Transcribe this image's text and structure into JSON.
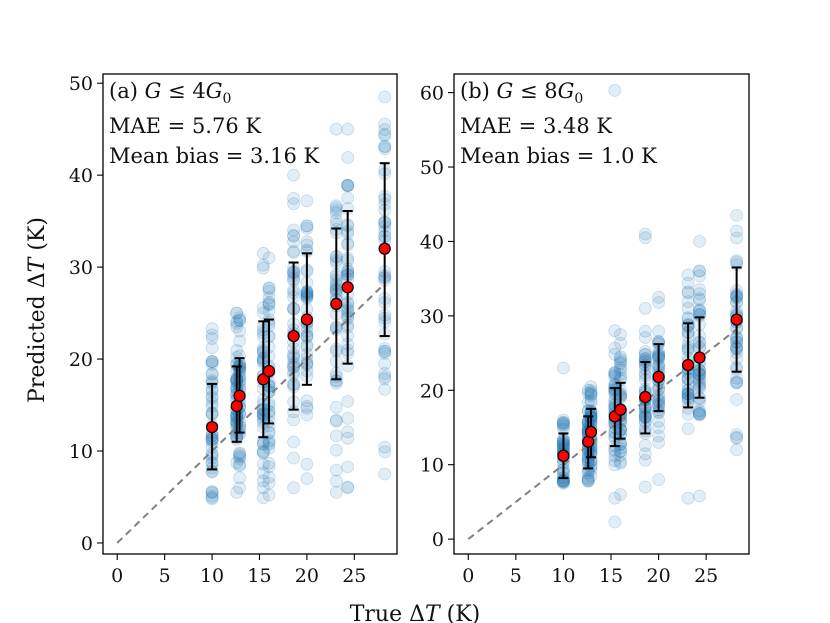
{
  "chart_data": {
    "type": "scatter",
    "xlabel": "True ΔT (K)",
    "ylabel": "Predicted ΔT (K)",
    "colors": {
      "scatter": "#1f77b4",
      "mean_marker": "#ff0000",
      "error_bar": "#000000",
      "diagonal": "#808080"
    },
    "scatter_alpha": 0.13,
    "panels": [
      {
        "id": "a",
        "label": "(a) ",
        "condition_var": "G",
        "condition_op": " ≤ 4",
        "condition_unit_base": "G",
        "condition_unit_sub": "0",
        "mae_text": "MAE = 5.76 K",
        "bias_text": "Mean bias = 3.16 K",
        "xlim": [
          -1.5,
          29.5
        ],
        "ylim": [
          -1.2,
          51
        ],
        "xticks": [
          0,
          5,
          10,
          15,
          20,
          25
        ],
        "yticks": [
          0,
          10,
          20,
          30,
          40,
          50
        ],
        "diagonal": [
          [
            0,
            0
          ],
          [
            28.2,
            28.2
          ]
        ],
        "groups": [
          {
            "x": 10.0,
            "mean": 12.6,
            "lo": 8.0,
            "hi": 17.3,
            "min": 4.8,
            "max": 23.3
          },
          {
            "x": 12.6,
            "mean": 14.9,
            "lo": 11.0,
            "hi": 19.2,
            "min": 5.5,
            "max": 25.0
          },
          {
            "x": 12.9,
            "mean": 16.0,
            "lo": 12.0,
            "hi": 20.1,
            "min": 6.0,
            "max": 24.5
          },
          {
            "x": 15.4,
            "mean": 17.8,
            "lo": 11.5,
            "hi": 24.1,
            "min": 4.9,
            "max": 31.5
          },
          {
            "x": 16.0,
            "mean": 18.7,
            "lo": 13.0,
            "hi": 24.3,
            "min": 5.2,
            "max": 31.0
          },
          {
            "x": 18.6,
            "mean": 22.5,
            "lo": 14.5,
            "hi": 30.5,
            "min": 6.0,
            "max": 40.0
          },
          {
            "x": 20.0,
            "mean": 24.3,
            "lo": 17.2,
            "hi": 31.5,
            "min": 7.0,
            "max": 37.2
          },
          {
            "x": 23.1,
            "mean": 26.0,
            "lo": 17.8,
            "hi": 34.2,
            "min": 5.5,
            "max": 45.0
          },
          {
            "x": 24.3,
            "mean": 27.8,
            "lo": 19.5,
            "hi": 36.1,
            "min": 6.0,
            "max": 45.0
          },
          {
            "x": 28.2,
            "mean": 32.0,
            "lo": 22.5,
            "hi": 41.3,
            "min": 7.5,
            "max": 48.5
          }
        ]
      },
      {
        "id": "b",
        "label": "(b) ",
        "condition_var": "G",
        "condition_op": " ≤ 8",
        "condition_unit_base": "G",
        "condition_unit_sub": "0",
        "mae_text": "MAE = 3.48 K",
        "bias_text": "Mean bias = 1.0 K",
        "xlim": [
          -1.5,
          29.5
        ],
        "ylim": [
          -2,
          62.5
        ],
        "xticks": [
          0,
          5,
          10,
          15,
          20,
          25
        ],
        "yticks": [
          0,
          10,
          20,
          30,
          40,
          50,
          60
        ],
        "diagonal": [
          [
            0,
            0
          ],
          [
            28.2,
            28.2
          ]
        ],
        "groups": [
          {
            "x": 10.0,
            "mean": 11.2,
            "lo": 8.2,
            "hi": 14.2,
            "min": 7.5,
            "max": 16.0
          },
          {
            "x": 12.6,
            "mean": 13.1,
            "lo": 9.5,
            "hi": 16.5,
            "min": 7.8,
            "max": 20.0
          },
          {
            "x": 12.9,
            "mean": 14.4,
            "lo": 11.0,
            "hi": 17.5,
            "min": 8.5,
            "max": 20.5
          },
          {
            "x": 15.4,
            "mean": 16.5,
            "lo": 12.5,
            "hi": 20.3,
            "min": 5.5,
            "max": 28.0
          },
          {
            "x": 16.0,
            "mean": 17.4,
            "lo": 13.5,
            "hi": 21.0,
            "min": 6.0,
            "max": 27.5
          },
          {
            "x": 18.6,
            "mean": 19.1,
            "lo": 14.2,
            "hi": 23.8,
            "min": 7.0,
            "max": 31.0
          },
          {
            "x": 20.0,
            "mean": 21.8,
            "lo": 17.2,
            "hi": 26.2,
            "min": 8.0,
            "max": 32.5
          },
          {
            "x": 23.1,
            "mean": 23.4,
            "lo": 17.7,
            "hi": 29.0,
            "min": 5.5,
            "max": 35.5
          },
          {
            "x": 24.3,
            "mean": 24.4,
            "lo": 19.0,
            "hi": 29.8,
            "min": 5.8,
            "max": 40.0
          },
          {
            "x": 28.2,
            "mean": 29.5,
            "lo": 22.5,
            "hi": 36.5,
            "min": 12.0,
            "max": 43.5
          }
        ],
        "outliers": [
          {
            "x": 10.0,
            "y": 23.0
          },
          {
            "x": 18.6,
            "y": 40.5
          },
          {
            "x": 18.6,
            "y": 41.0
          },
          {
            "x": 15.4,
            "y": 60.3
          },
          {
            "x": 15.4,
            "y": 2.3
          }
        ]
      }
    ]
  }
}
